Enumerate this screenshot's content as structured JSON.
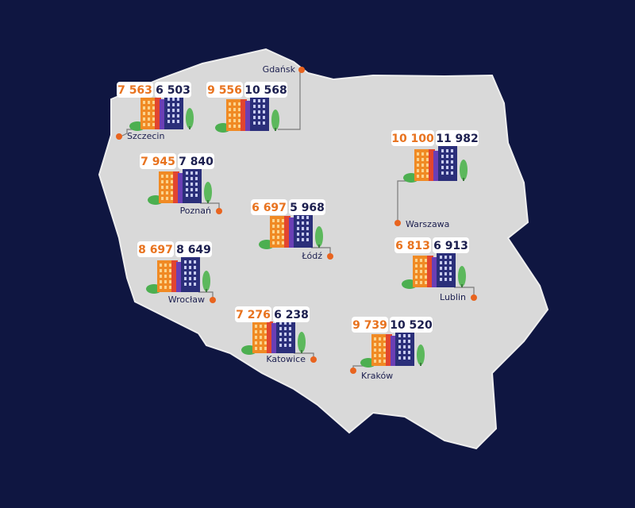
{
  "cities": [
    {
      "name": "Szczecin",
      "values": [
        "7 563",
        "6 503"
      ]
    },
    {
      "name": "Gdańsk",
      "values": [
        "9 556",
        "10 568"
      ]
    },
    {
      "name": "Warszawa",
      "values": [
        "10 100",
        "11 982"
      ]
    },
    {
      "name": "Poznań",
      "values": [
        "7 945",
        "7 840"
      ]
    },
    {
      "name": "Łódź",
      "values": [
        "6 697",
        "5 968"
      ]
    },
    {
      "name": "Wrocław",
      "values": [
        "8 697",
        "8 649"
      ]
    },
    {
      "name": "Lublin",
      "values": [
        "6 813",
        "6 913"
      ]
    },
    {
      "name": "Katowice",
      "values": [
        "7 276",
        "6 238"
      ]
    },
    {
      "name": "Kraków",
      "values": [
        "9 739",
        "10 520"
      ]
    }
  ]
}
